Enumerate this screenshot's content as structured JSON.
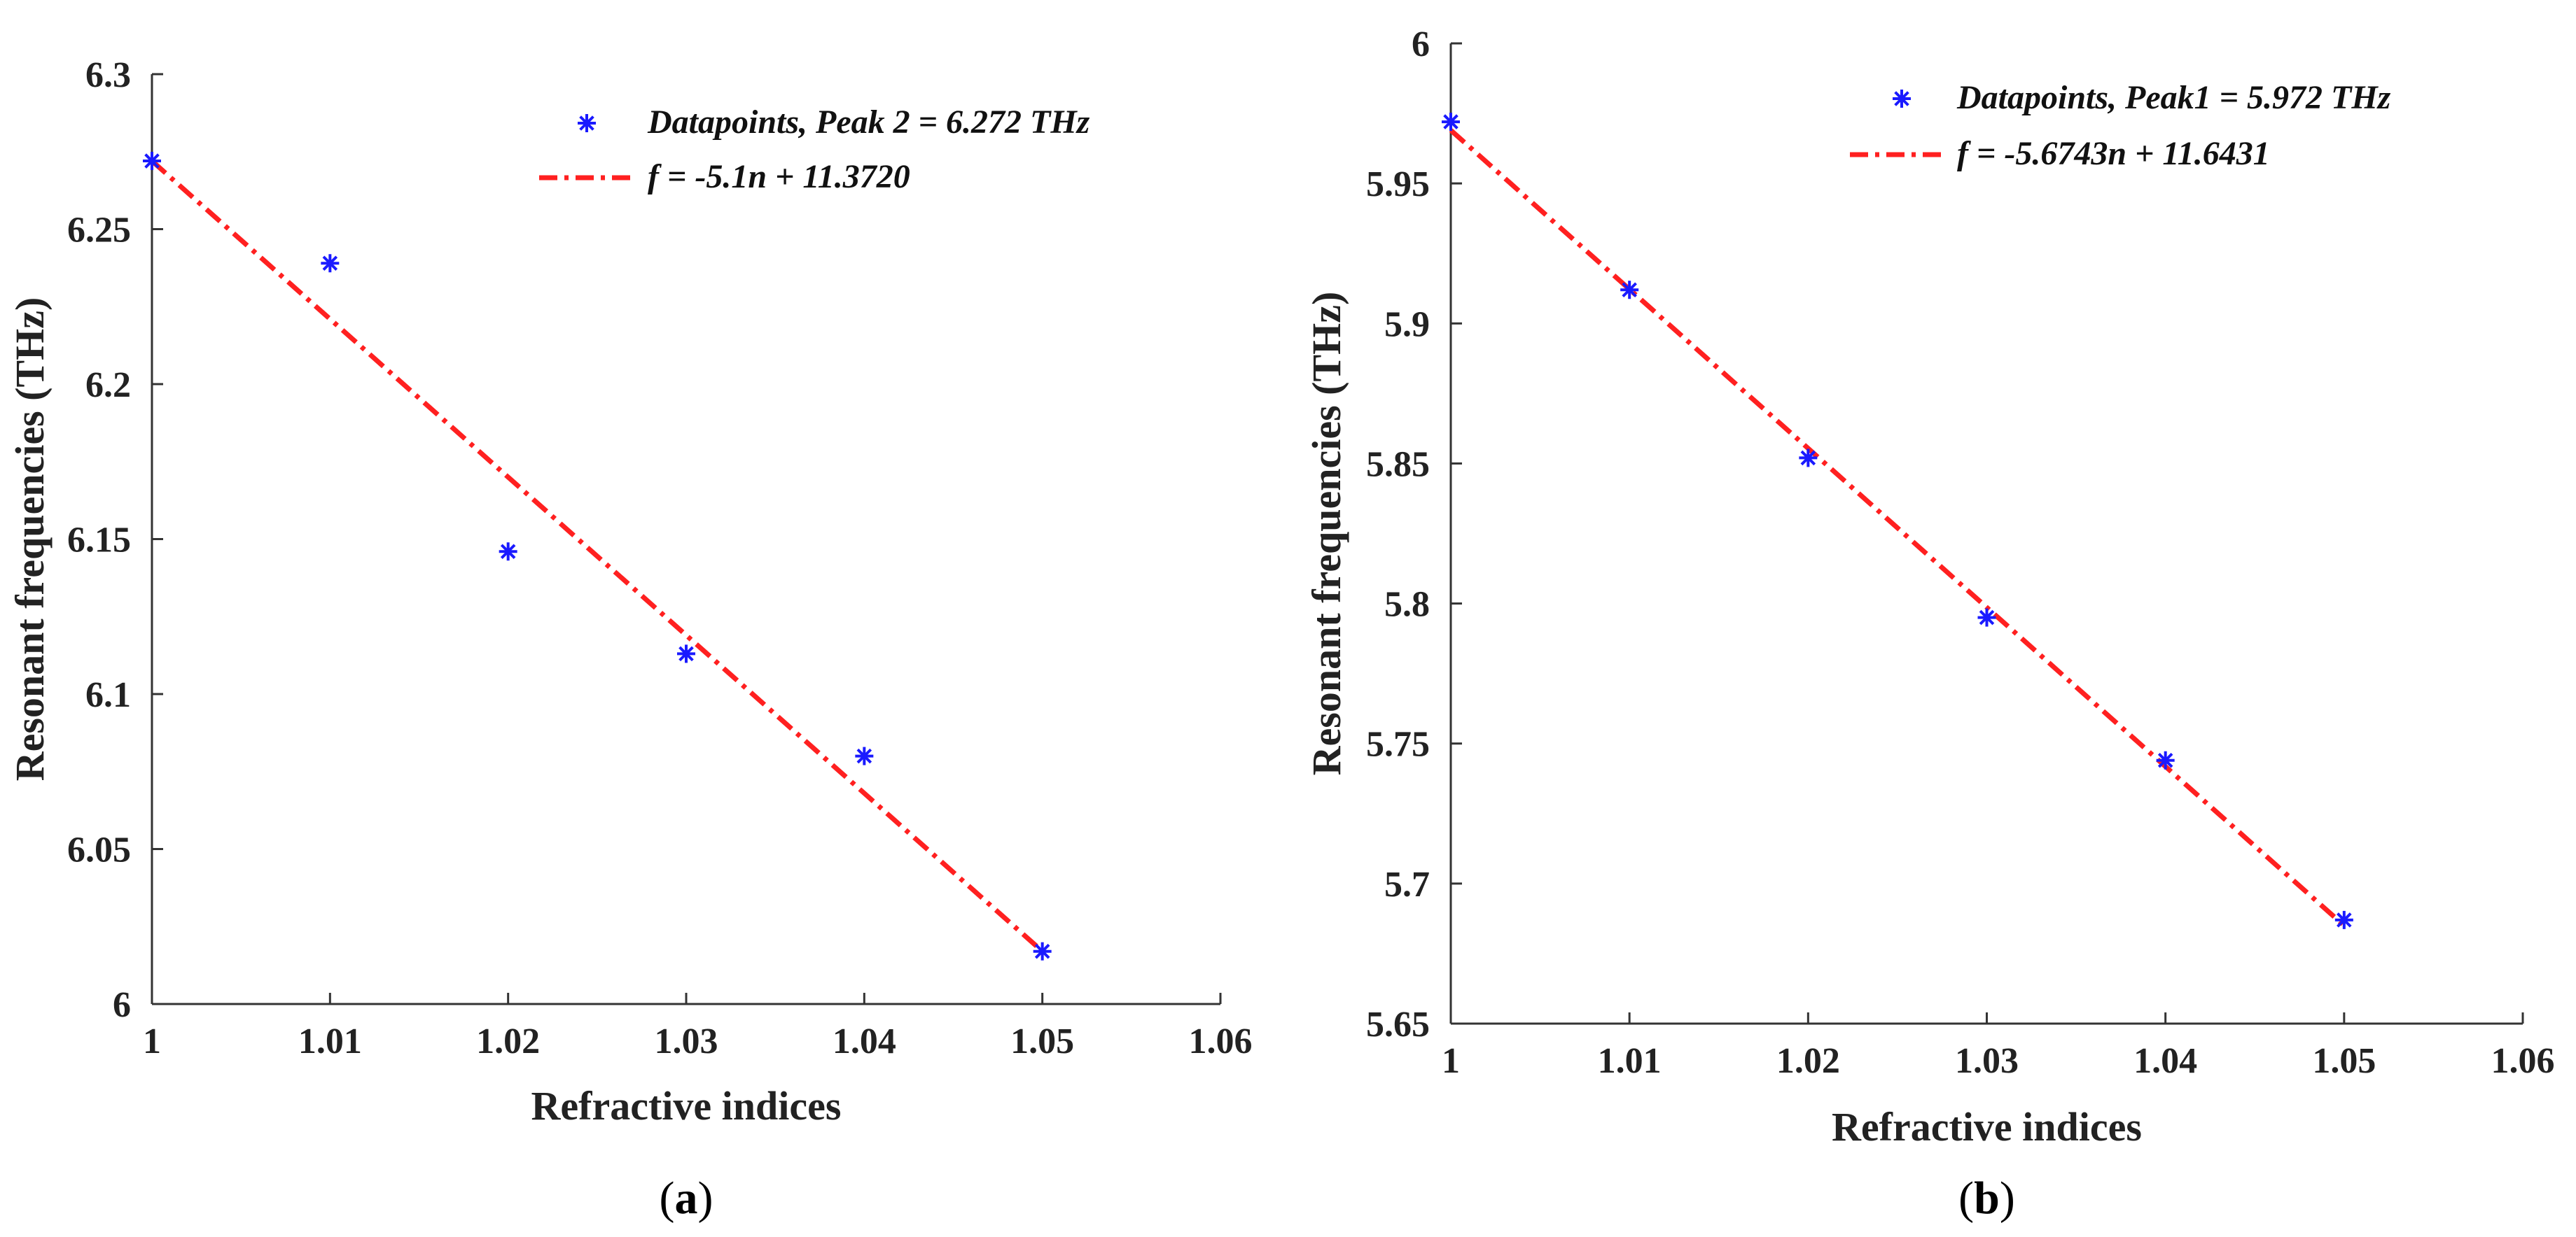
{
  "chart_data": [
    {
      "type": "scatter",
      "panel": "a",
      "caption": {
        "open": "(",
        "letter": "a",
        "close": ")"
      },
      "xlabel": "Refractive indices",
      "ylabel": "Resonant frequencies (THz)",
      "xlim": [
        1,
        1.06
      ],
      "ylim": [
        6,
        6.3
      ],
      "xticks": [
        1,
        1.01,
        1.02,
        1.03,
        1.04,
        1.05,
        1.06
      ],
      "xtick_labels": [
        "1",
        "1.01",
        "1.02",
        "1.03",
        "1.04",
        "1.05",
        "1.06"
      ],
      "yticks": [
        6,
        6.05,
        6.1,
        6.15,
        6.2,
        6.25,
        6.3
      ],
      "ytick_labels": [
        "6",
        "6.05",
        "6.1",
        "6.15",
        "6.2",
        "6.25",
        "6.3"
      ],
      "series": [
        {
          "name": "Datapoints,   Peak 2 = 6.272 THz",
          "kind": "markers",
          "marker": "asterisk",
          "color": "#1a1aff",
          "x": [
            1.0,
            1.01,
            1.02,
            1.03,
            1.04,
            1.05
          ],
          "y": [
            6.272,
            6.239,
            6.146,
            6.113,
            6.08,
            6.017
          ]
        },
        {
          "name": "f = -5.1n + 11.3720",
          "kind": "line",
          "style": "dash-dot",
          "color": "#ff2020",
          "x": [
            1.0,
            1.05
          ],
          "y": [
            6.272,
            6.017
          ]
        }
      ],
      "legend_placement": "top-right"
    },
    {
      "type": "scatter",
      "panel": "b",
      "caption": {
        "open": "(",
        "letter": "b",
        "close": ")"
      },
      "xlabel": "Refractive indices",
      "ylabel": "Resonant frequencies (THz)",
      "xlim": [
        1,
        1.06
      ],
      "ylim": [
        5.65,
        6
      ],
      "xticks": [
        1,
        1.01,
        1.02,
        1.03,
        1.04,
        1.05,
        1.06
      ],
      "xtick_labels": [
        "1",
        "1.01",
        "1.02",
        "1.03",
        "1.04",
        "1.05",
        "1.06"
      ],
      "yticks": [
        5.65,
        5.7,
        5.75,
        5.8,
        5.85,
        5.9,
        5.95,
        6
      ],
      "ytick_labels": [
        "5.65",
        "5.7",
        "5.75",
        "5.8",
        "5.85",
        "5.9",
        "5.95",
        "6"
      ],
      "series": [
        {
          "name": "Datapoints,   Peak1 = 5.972 THz",
          "kind": "markers",
          "marker": "asterisk",
          "color": "#1a1aff",
          "x": [
            1.0,
            1.01,
            1.02,
            1.03,
            1.04,
            1.05
          ],
          "y": [
            5.972,
            5.912,
            5.852,
            5.795,
            5.744,
            5.687
          ]
        },
        {
          "name": "f = -5.6743n + 11.6431",
          "kind": "line",
          "style": "dash-dot",
          "color": "#ff2020",
          "x": [
            1.0,
            1.05
          ],
          "y": [
            5.969,
            5.685
          ]
        }
      ],
      "legend_placement": "top-right"
    }
  ]
}
